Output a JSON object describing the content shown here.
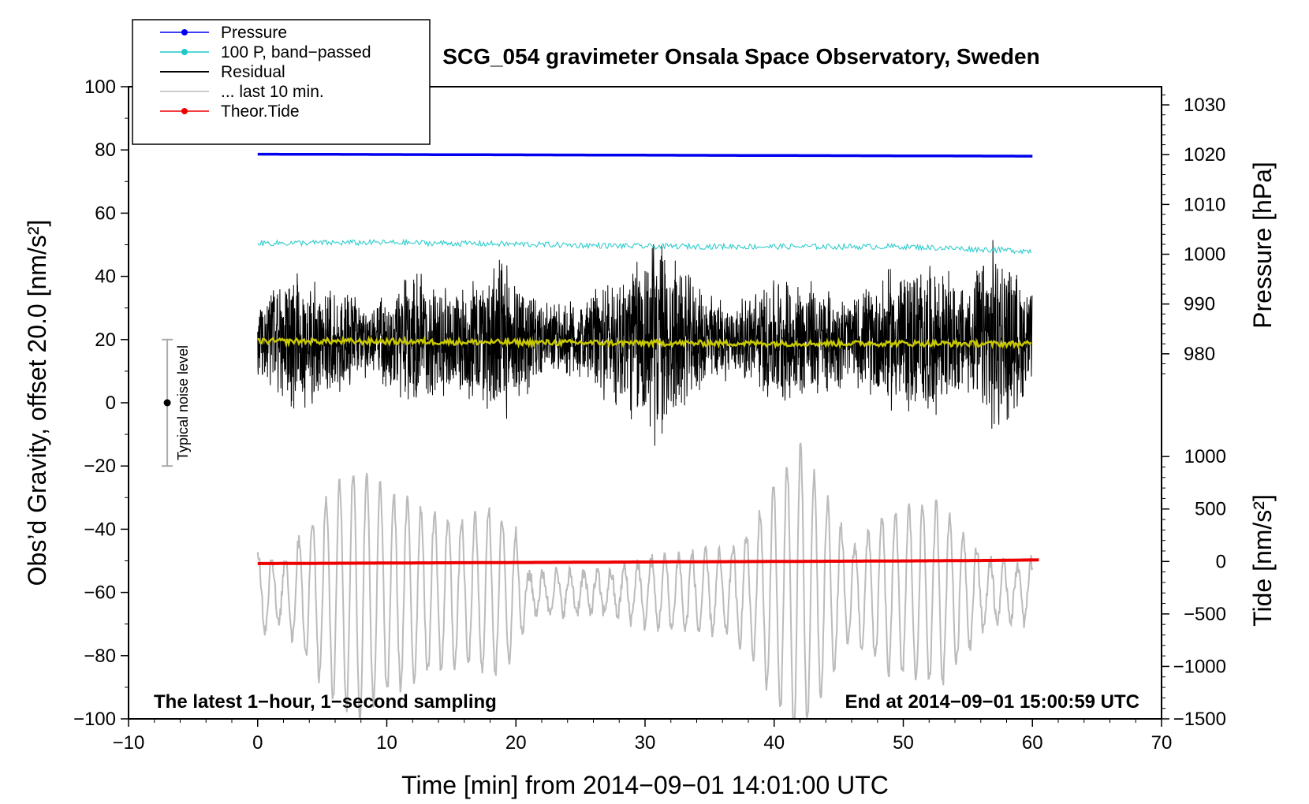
{
  "chart_data": {
    "type": "line",
    "title": "SCG_054 gravimeter Onsala Space Observatory, Sweden",
    "xlabel": "Time [min] from 2014−09−01 14:01:00 UTC",
    "ylabel_left": "Obs’d Gravity, offset 20.0 [nm/s²]",
    "ylabel_right_pressure": "Pressure [hPa]",
    "ylabel_right_tide": "Tide [nm/s²]",
    "xlim": [
      -10,
      70
    ],
    "ylim_left": [
      -100,
      100
    ],
    "x_ticks": [
      "−10",
      "0",
      "10",
      "20",
      "30",
      "40",
      "50",
      "60",
      "70"
    ],
    "x_tick_values": [
      -10,
      0,
      10,
      20,
      30,
      40,
      50,
      60,
      70
    ],
    "y_ticks_left": [
      "100",
      "80",
      "60",
      "40",
      "20",
      "0",
      "−20",
      "−40",
      "−60",
      "−80",
      "−100"
    ],
    "y_tick_values_left": [
      100,
      80,
      60,
      40,
      20,
      0,
      -20,
      -40,
      -60,
      -80,
      -100
    ],
    "pressure_axis": {
      "ticks": [
        "1030",
        "1020",
        "1010",
        "1000",
        "990",
        "980"
      ],
      "tick_values": [
        1030,
        1020,
        1010,
        1000,
        990,
        980
      ],
      "map": {
        "value_a": 1020,
        "left_a": 78.5,
        "value_b": 980,
        "left_b": 15.5
      }
    },
    "tide_axis": {
      "ticks": [
        "1000",
        "500",
        "0",
        "−500",
        "−1000",
        "−1500"
      ],
      "tick_values": [
        1000,
        500,
        0,
        -500,
        -1000,
        -1500
      ],
      "map": {
        "value_a": 1000,
        "left_a": -17,
        "value_b": -1500,
        "left_b": -100
      }
    },
    "legend": [
      {
        "label": "Pressure",
        "color": "#0000ee",
        "marker": true
      },
      {
        "label": "100 P, band−passed",
        "color": "#20c8c8",
        "marker": true
      },
      {
        "label": "Residual",
        "color": "#000000",
        "marker": false
      },
      {
        "label": "... last 10 min.",
        "color": "#bbbbbb",
        "marker": false
      },
      {
        "label": "Theor.Tide",
        "color": "#ee0000",
        "marker": true
      }
    ],
    "legend_position": "top-left",
    "annotations": {
      "bottom_left": "The latest 1−hour, 1−second sampling",
      "bottom_right": "End at 2014−09−01 15:00:59 UTC",
      "noise_bar": {
        "label": "Typical noise level",
        "x": -7,
        "y_center": 0,
        "y_low": -20,
        "y_high": 20
      }
    },
    "series": [
      {
        "name": "Pressure",
        "color": "#0000ee",
        "x_range": [
          0,
          60
        ],
        "units": "hPa",
        "points": [
          [
            0,
            1020.1
          ],
          [
            15,
            1020.0
          ],
          [
            30,
            1019.9
          ],
          [
            45,
            1019.8
          ],
          [
            60,
            1019.7
          ]
        ]
      },
      {
        "name": "100 P, band−passed",
        "color": "#20c8c8",
        "x_range": [
          0,
          60
        ],
        "units": "nm/s²",
        "points": [
          [
            0,
            50.5
          ],
          [
            10,
            50.7
          ],
          [
            20,
            50.2
          ],
          [
            30,
            49.5
          ],
          [
            40,
            49.4
          ],
          [
            50,
            49.4
          ],
          [
            60,
            48.0
          ]
        ]
      },
      {
        "name": "Residual",
        "color": "#000000",
        "x_range": [
          0,
          60
        ],
        "units": "nm/s²",
        "center": 20,
        "amplitude_envelope": [
          [
            0,
            14
          ],
          [
            3,
            24
          ],
          [
            6,
            18
          ],
          [
            9,
            12
          ],
          [
            12,
            24
          ],
          [
            15,
            18
          ],
          [
            19,
            28
          ],
          [
            22,
            12
          ],
          [
            25,
            14
          ],
          [
            28,
            24
          ],
          [
            31,
            36
          ],
          [
            34,
            18
          ],
          [
            37,
            12
          ],
          [
            40,
            22
          ],
          [
            43,
            20
          ],
          [
            46,
            14
          ],
          [
            49,
            24
          ],
          [
            52,
            26
          ],
          [
            55,
            18
          ],
          [
            57,
            34
          ],
          [
            60,
            16
          ]
        ]
      },
      {
        "name": "Residual smoothed",
        "color": "#c8c800",
        "x_range": [
          0,
          60
        ],
        "units": "nm/s²",
        "points": [
          [
            0,
            19.5
          ],
          [
            10,
            19.4
          ],
          [
            20,
            19.1
          ],
          [
            30,
            18.9
          ],
          [
            40,
            18.8
          ],
          [
            50,
            18.8
          ],
          [
            60,
            18.6
          ]
        ]
      },
      {
        "name": "... last 10 min.",
        "color": "#bbbbbb",
        "x_range": [
          0,
          60
        ],
        "units": "nm/s²",
        "center": -60,
        "amplitude_envelope": [
          [
            0,
            12
          ],
          [
            2,
            10
          ],
          [
            4,
            22
          ],
          [
            6,
            34
          ],
          [
            8,
            40
          ],
          [
            10,
            32
          ],
          [
            13,
            26
          ],
          [
            16,
            22
          ],
          [
            18,
            26
          ],
          [
            20,
            20
          ],
          [
            21,
            6
          ],
          [
            24,
            6
          ],
          [
            27,
            6
          ],
          [
            30,
            10
          ],
          [
            33,
            12
          ],
          [
            36,
            12
          ],
          [
            38,
            18
          ],
          [
            40,
            34
          ],
          [
            42,
            46
          ],
          [
            44,
            30
          ],
          [
            46,
            14
          ],
          [
            49,
            26
          ],
          [
            53,
            28
          ],
          [
            56,
            12
          ],
          [
            58,
            8
          ],
          [
            60,
            10
          ]
        ]
      },
      {
        "name": "Theor.Tide",
        "color": "#ee0000",
        "x_range": [
          0,
          60.5
        ],
        "units": "nm/s²",
        "points": [
          [
            0,
            -20
          ],
          [
            20,
            -10
          ],
          [
            40,
            0
          ],
          [
            50,
            5
          ],
          [
            57,
            10
          ],
          [
            60.5,
            15
          ]
        ]
      }
    ]
  }
}
